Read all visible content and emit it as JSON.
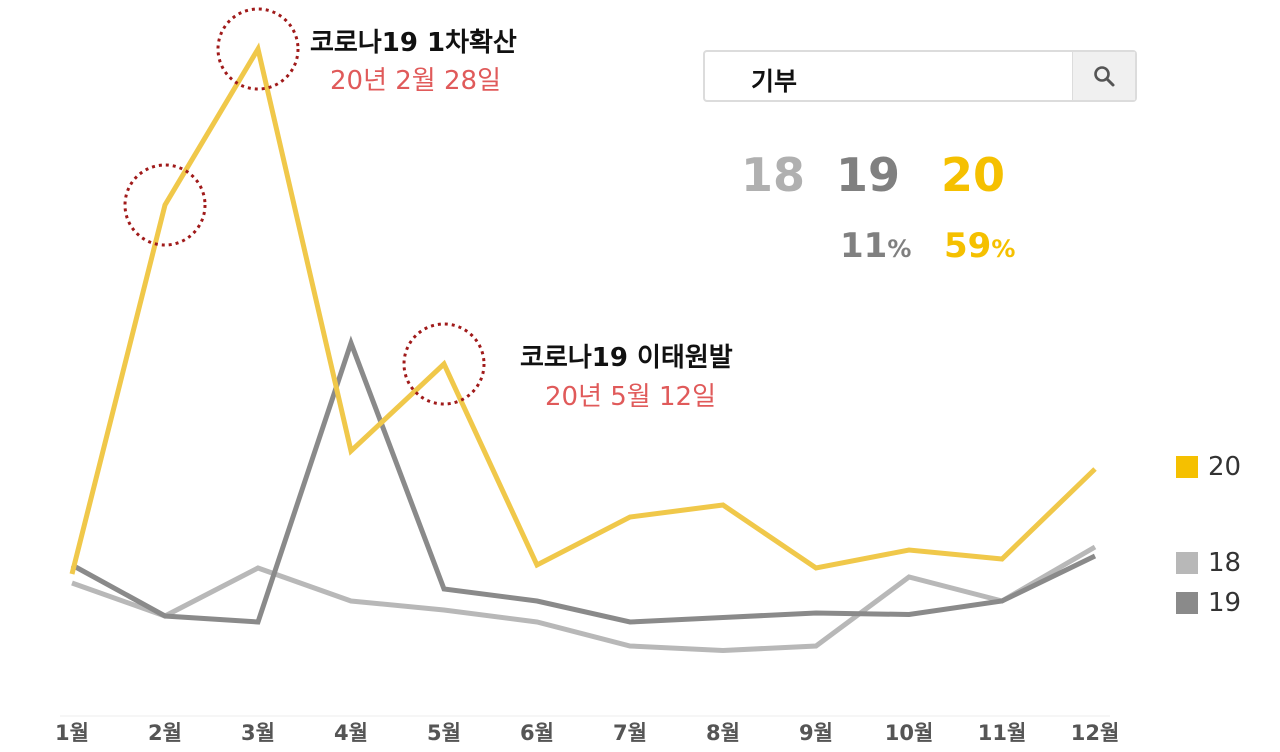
{
  "search": {
    "query": "기부"
  },
  "comparison": {
    "years": [
      {
        "label": "18",
        "color": "#b0b0b0",
        "percent": null
      },
      {
        "label": "19",
        "color": "#808080",
        "percent": "11"
      },
      {
        "label": "20",
        "color": "#f5c000",
        "percent": "59"
      }
    ],
    "percent_unit": "%"
  },
  "annotations": [
    {
      "title": "코로나19 1차확산",
      "date": "20년 2월 28일"
    },
    {
      "title": "코로나19 이태원발",
      "date": "20년 5월 12일"
    }
  ],
  "chart_data": {
    "type": "line",
    "categories": [
      "1월",
      "2월",
      "3월",
      "4월",
      "5월",
      "6월",
      "7월",
      "8월",
      "9월",
      "10월",
      "11월",
      "12월"
    ],
    "series": [
      {
        "name": "18",
        "color": "#b8b8b8",
        "values": [
          23,
          12,
          28,
          17,
          14,
          10,
          2,
          0.5,
          2,
          25,
          17,
          35
        ]
      },
      {
        "name": "19",
        "color": "#8a8a8a",
        "values": [
          29,
          12,
          10,
          103,
          21,
          17,
          10,
          11.5,
          13,
          12.5,
          17,
          32
        ]
      },
      {
        "name": "20",
        "color": "#f0c84a",
        "values": [
          26,
          149,
          201,
          67,
          96,
          29,
          45,
          49,
          28,
          34,
          31,
          61
        ]
      }
    ],
    "ylim": [
      -10,
      210
    ],
    "grid": false,
    "legend": "right",
    "highlight_points": [
      {
        "series": "20",
        "index": 1
      },
      {
        "series": "20",
        "index": 2
      },
      {
        "series": "20",
        "index": 4
      }
    ]
  }
}
